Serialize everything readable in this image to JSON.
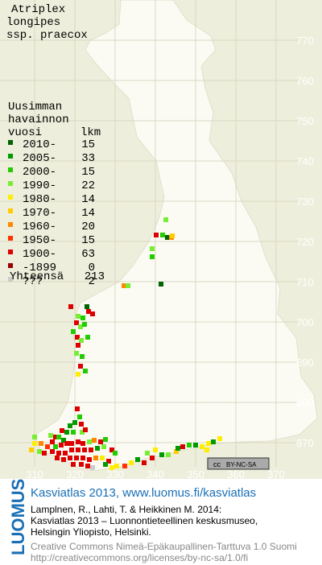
{
  "title": [
    "Atriplex",
    "longipes",
    "ssp. praecox"
  ],
  "legend": {
    "header": [
      "Uusimman",
      "havainnon",
      "vuosi"
    ],
    "count_header": "lkm",
    "items": [
      {
        "label": "2010-",
        "count": 15,
        "color": "#006400"
      },
      {
        "label": "2005-",
        "count": 33,
        "color": "#009a00"
      },
      {
        "label": "2000-",
        "count": 15,
        "color": "#22cc00"
      },
      {
        "label": "1990-",
        "count": 22,
        "color": "#77ee33"
      },
      {
        "label": "1980-",
        "count": 14,
        "color": "#ffee00"
      },
      {
        "label": "1970-",
        "count": 14,
        "color": "#ffcc00"
      },
      {
        "label": "1960-",
        "count": 20,
        "color": "#ff8800"
      },
      {
        "label": "1950-",
        "count": 15,
        "color": "#ff3300"
      },
      {
        "label": "1900-",
        "count": 63,
        "color": "#dd0000"
      },
      {
        "label": "-1899",
        "count": 0,
        "color": "#990000"
      },
      {
        "label": "???",
        "count": 2,
        "color": "#cccccc"
      }
    ],
    "total_label": "Yhteensä",
    "total": 213
  },
  "grid": {
    "northing": [
      770,
      760,
      750,
      740,
      730,
      720,
      710,
      700,
      690,
      680,
      670
    ],
    "easting": [
      310,
      320,
      330,
      340,
      350,
      360,
      370
    ]
  },
  "license_badge": {
    "cc": "cc",
    "text": "BY-NC-SA"
  },
  "footer": {
    "logo": "LUOMUS",
    "headline": "Kasviatlas 2013, www.luomus.fi/kasviatlas",
    "citation": [
      "Lamplnen, R., Lahti, T. & Heikkinen M. 2014:",
      "Kasviatlas 2013 – Luonnontieteellinen keskusmuseo,",
      "Helsingin Yliopisto, Helsinki."
    ],
    "license": [
      "Creative Commons Nimeä-Epäkaupallinen-Tarttuva 1.0 Suomi",
      "http://creativecommons.org/licenses/by-nc-sa/1.0/fi"
    ]
  }
}
